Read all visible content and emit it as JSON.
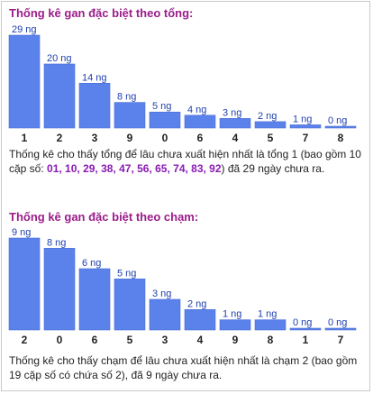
{
  "colors": {
    "bar": "#5b82ea",
    "bar_border": "#4a6fd6",
    "title": "#9b1d8a",
    "value_label": "#1f3fae",
    "highlight": "#8a1ab4"
  },
  "chart_data": [
    {
      "type": "bar",
      "title": "Thống kê gan đặc biệt theo tổng:",
      "categories": [
        "1",
        "2",
        "3",
        "9",
        "0",
        "6",
        "4",
        "5",
        "7",
        "8"
      ],
      "values": [
        29,
        20,
        14,
        8,
        5,
        4,
        3,
        2,
        1,
        0
      ],
      "value_labels": [
        "29 ng",
        "20 ng",
        "14 ng",
        "8 ng",
        "5 ng",
        "4 ng",
        "3 ng",
        "2 ng",
        "1 ng",
        "0 ng"
      ],
      "ylim": [
        0,
        29
      ],
      "grid": false,
      "description": {
        "before": "Thống kê cho thấy tổng để lâu chưa xuất hiện nhất là tổng 1 (bao gồm 10 cặp số: ",
        "numbers": "01, 10, 29, 38, 47, 56, 65, 74, 83, 92",
        "after": ") đã 29 ngày chưa ra."
      }
    },
    {
      "type": "bar",
      "title": "Thống kê gan đặc biệt theo chạm:",
      "categories": [
        "2",
        "0",
        "6",
        "5",
        "3",
        "4",
        "9",
        "8",
        "1",
        "7"
      ],
      "values": [
        9,
        8,
        6,
        5,
        3,
        2,
        1,
        1,
        0,
        0
      ],
      "value_labels": [
        "9 ng",
        "8 ng",
        "6 ng",
        "5 ng",
        "3 ng",
        "2 ng",
        "1 ng",
        "1 ng",
        "0 ng",
        "0 ng"
      ],
      "ylim": [
        0,
        9
      ],
      "grid": false,
      "description": {
        "text": "Thống kê cho thấy chạm để lâu chưa xuất hiện nhất là chạm 2 (bao gồm 19 cặp số có chứa số 2), đã 9 ngày chưa ra."
      }
    }
  ]
}
